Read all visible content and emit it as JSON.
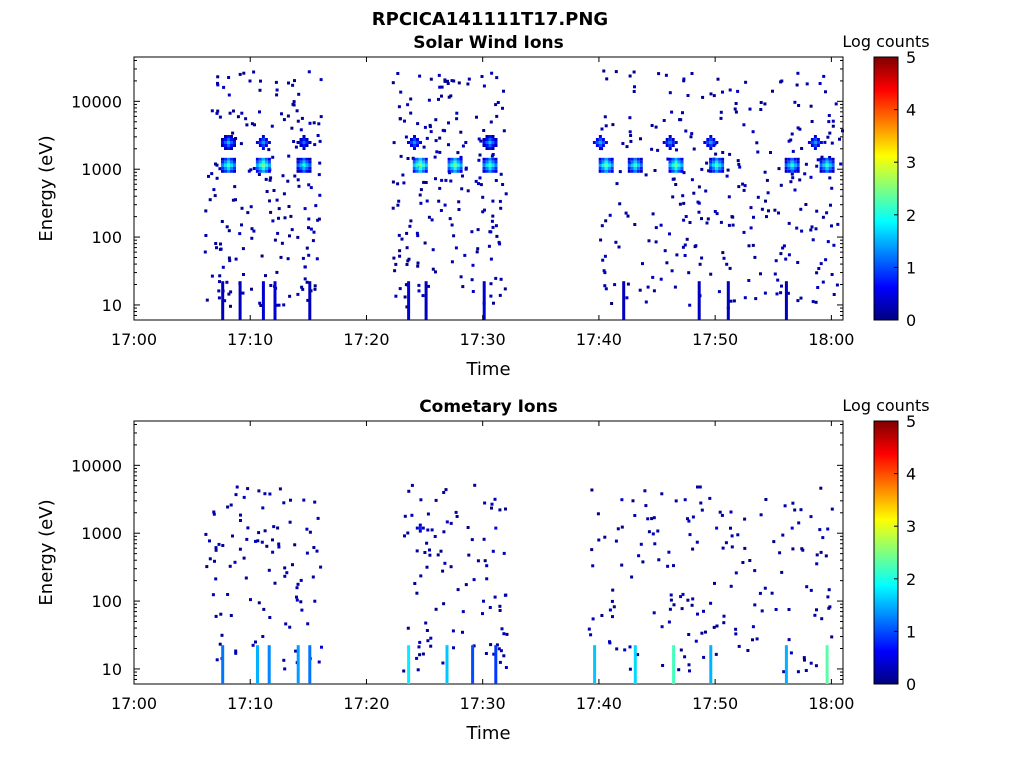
{
  "figure": {
    "title": "RPCICA141111T17.PNG"
  },
  "colorscale": {
    "name": "jet",
    "stops": [
      "#00007f",
      "#0000ff",
      "#007fff",
      "#00ffff",
      "#7fff7f",
      "#ffff00",
      "#ff7f00",
      "#ff0000",
      "#7f0000"
    ]
  },
  "chart_data": [
    {
      "type": "heatmap",
      "title": "Solar Wind Ions",
      "xlabel": "Time",
      "ylabel": "Energy (eV)",
      "yscale": "log",
      "ylim": [
        6,
        45000
      ],
      "xlim": [
        "17:00",
        "18:01"
      ],
      "xticks": [
        "17:00",
        "17:10",
        "17:20",
        "17:30",
        "17:40",
        "17:50",
        "18:00"
      ],
      "yticks": [
        10,
        100,
        1000,
        10000
      ],
      "ytick_labels": [
        "10",
        "100",
        "1000",
        "10000"
      ],
      "colorbar": {
        "label": "Log counts",
        "ticks": [
          0,
          1,
          2,
          3,
          4,
          5
        ],
        "range": [
          0,
          5
        ]
      },
      "bursts": [
        {
          "start": "17:06",
          "end": "17:16",
          "sparse_counts": 0.5,
          "hotspots": [
            {
              "time": "17:08",
              "energy": 1200,
              "log_counts": 2.2
            },
            {
              "time": "17:11",
              "energy": 1200,
              "log_counts": 2.4
            },
            {
              "time": "17:14.5",
              "energy": 1200,
              "log_counts": 2.0
            },
            {
              "time": "17:08",
              "energy": 2600,
              "log_counts": 1.6
            },
            {
              "time": "17:11",
              "energy": 2600,
              "log_counts": 1.4
            },
            {
              "time": "17:14.5",
              "energy": 2600,
              "log_counts": 1.2
            }
          ],
          "low_energy_counts": [
            {
              "time": "17:07.5",
              "energy": 7,
              "log_counts": 0.3
            },
            {
              "time": "17:09",
              "energy": 7,
              "log_counts": 0.3
            },
            {
              "time": "17:11",
              "energy": 7,
              "log_counts": 0.4
            },
            {
              "time": "17:12",
              "energy": 7,
              "log_counts": 0.4
            },
            {
              "time": "17:15",
              "energy": 7,
              "log_counts": 0.3
            }
          ]
        },
        {
          "start": "17:22",
          "end": "17:32",
          "sparse_counts": 0.5,
          "hotspots": [
            {
              "time": "17:24.5",
              "energy": 1200,
              "log_counts": 2.5
            },
            {
              "time": "17:27.5",
              "energy": 1200,
              "log_counts": 2.4
            },
            {
              "time": "17:30.5",
              "energy": 1200,
              "log_counts": 2.2
            },
            {
              "time": "17:24",
              "energy": 2600,
              "log_counts": 1.4
            },
            {
              "time": "17:30.5",
              "energy": 2600,
              "log_counts": 1.6
            }
          ],
          "low_energy_counts": [
            {
              "time": "17:23.5",
              "energy": 7,
              "log_counts": 0.4
            },
            {
              "time": "17:25",
              "energy": 7,
              "log_counts": 0.3
            },
            {
              "time": "17:30",
              "energy": 7,
              "log_counts": 0.4
            }
          ]
        },
        {
          "start": "17:40",
          "end": "18:01",
          "sparse_counts": 0.4,
          "hotspots": [
            {
              "time": "17:40.5",
              "energy": 1200,
              "log_counts": 2.3
            },
            {
              "time": "17:43",
              "energy": 1200,
              "log_counts": 2.1
            },
            {
              "time": "17:46.5",
              "energy": 1200,
              "log_counts": 2.4
            },
            {
              "time": "17:50",
              "energy": 1200,
              "log_counts": 2.2
            },
            {
              "time": "17:56.5",
              "energy": 1200,
              "log_counts": 2.0
            },
            {
              "time": "17:59.5",
              "energy": 1200,
              "log_counts": 2.1
            },
            {
              "time": "17:40",
              "energy": 2600,
              "log_counts": 1.5
            },
            {
              "time": "17:46",
              "energy": 2600,
              "log_counts": 1.3
            },
            {
              "time": "17:49.5",
              "energy": 2600,
              "log_counts": 1.4
            },
            {
              "time": "17:58.5",
              "energy": 2600,
              "log_counts": 1.4
            }
          ],
          "low_energy_counts": [
            {
              "time": "17:42",
              "energy": 7,
              "log_counts": 0.3
            },
            {
              "time": "17:48.5",
              "energy": 7,
              "log_counts": 0.3
            },
            {
              "time": "17:51",
              "energy": 7,
              "log_counts": 0.3
            },
            {
              "time": "17:56",
              "energy": 7,
              "log_counts": 0.3
            }
          ]
        }
      ]
    },
    {
      "type": "heatmap",
      "title": "Cometary Ions",
      "xlabel": "Time",
      "ylabel": "Energy (eV)",
      "yscale": "log",
      "ylim": [
        6,
        45000
      ],
      "xlim": [
        "17:00",
        "18:01"
      ],
      "xticks": [
        "17:00",
        "17:10",
        "17:20",
        "17:30",
        "17:40",
        "17:50",
        "18:00"
      ],
      "yticks": [
        10,
        100,
        1000,
        10000
      ],
      "ytick_labels": [
        "10",
        "100",
        "1000",
        "10000"
      ],
      "colorbar": {
        "label": "Log counts",
        "ticks": [
          0,
          1,
          2,
          3,
          4,
          5
        ],
        "range": [
          0,
          5
        ]
      },
      "bursts": [
        {
          "start": "17:06",
          "end": "17:16",
          "sparse_counts": 0.2,
          "hotspots": [
            {
              "time": "17:16",
              "energy": 22,
              "log_counts": 0.5
            }
          ],
          "low_energy_counts": [
            {
              "time": "17:07.5",
              "energy": 7,
              "log_counts": 1.2
            },
            {
              "time": "17:10.5",
              "energy": 7,
              "log_counts": 1.5
            },
            {
              "time": "17:11.5",
              "energy": 7,
              "log_counts": 1.3
            },
            {
              "time": "17:14",
              "energy": 7,
              "log_counts": 1.4
            },
            {
              "time": "17:15",
              "energy": 7,
              "log_counts": 1.2
            }
          ]
        },
        {
          "start": "17:23",
          "end": "17:32",
          "sparse_counts": 0.2,
          "hotspots": [
            {
              "time": "17:24.5",
              "energy": 1250,
              "log_counts": 0.8
            },
            {
              "time": "17:31",
              "energy": 1250,
              "log_counts": 0.6
            }
          ],
          "low_energy_counts": [
            {
              "time": "17:23.5",
              "energy": 7,
              "log_counts": 1.8
            },
            {
              "time": "17:26.8",
              "energy": 7,
              "log_counts": 1.6
            },
            {
              "time": "17:29",
              "energy": 7,
              "log_counts": 1.0
            },
            {
              "time": "17:31",
              "energy": 7,
              "log_counts": 0.9
            }
          ]
        },
        {
          "start": "17:39",
          "end": "18:00",
          "sparse_counts": 0.2,
          "hotspots": [
            {
              "time": "17:50",
              "energy": 1250,
              "log_counts": 0.6
            },
            {
              "time": "17:56.5",
              "energy": 1250,
              "log_counts": 0.6
            }
          ],
          "low_energy_counts": [
            {
              "time": "17:39.5",
              "energy": 7,
              "log_counts": 1.6
            },
            {
              "time": "17:43",
              "energy": 7,
              "log_counts": 1.7
            },
            {
              "time": "17:46.3",
              "energy": 7,
              "log_counts": 2.2
            },
            {
              "time": "17:49.5",
              "energy": 7,
              "log_counts": 1.5
            },
            {
              "time": "17:56",
              "energy": 7,
              "log_counts": 1.5
            },
            {
              "time": "17:59.5",
              "energy": 7,
              "log_counts": 2.3
            }
          ]
        }
      ]
    }
  ]
}
